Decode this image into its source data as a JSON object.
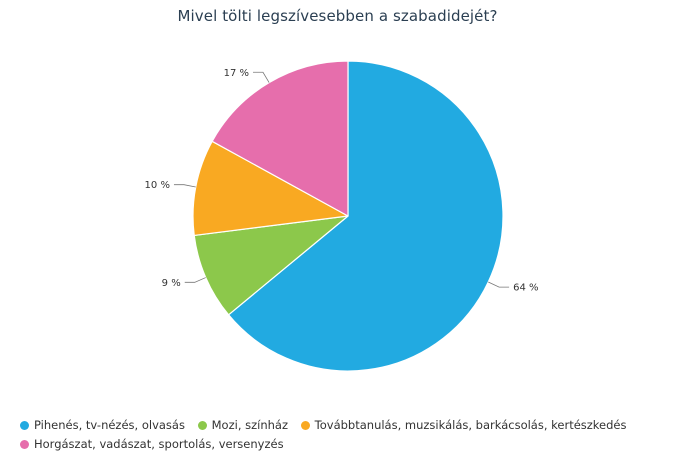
{
  "chart_data": {
    "type": "pie",
    "title": "Mivel tölti legszívesebben a szabadidejét?",
    "legend_position": "bottom-left",
    "slices": [
      {
        "label": "Pihenés, tv-nézés, olvasás",
        "value": 64,
        "value_label": "64 %",
        "color": "#22aae1"
      },
      {
        "label": "Mozi, színház",
        "value": 9,
        "value_label": "9 %",
        "color": "#8cc84b"
      },
      {
        "label": "Továbbtanulás, muzsikálás, barkácsolás, kertészkedés",
        "value": 10,
        "value_label": "10 %",
        "color": "#f9a922"
      },
      {
        "label": "Horgászat, vadászat, sportolás, versenyzés",
        "value": 17,
        "value_label": "17 %",
        "color": "#e66eac"
      }
    ]
  }
}
